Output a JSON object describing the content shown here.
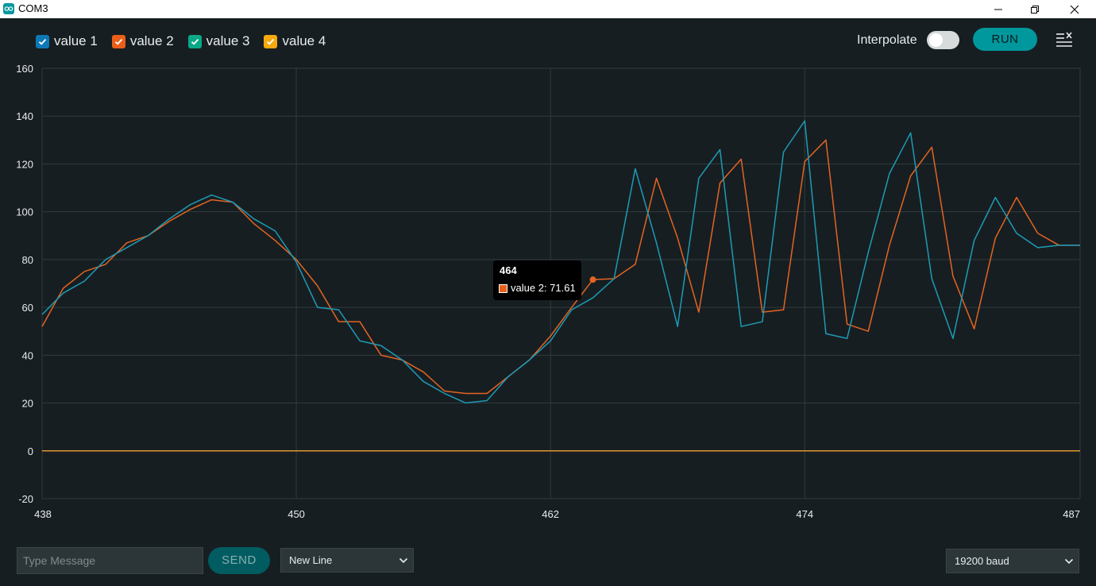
{
  "window": {
    "title": "COM3"
  },
  "legend": [
    {
      "label": "value 1",
      "color": "#0e78b6"
    },
    {
      "label": "value 2",
      "color": "#ec5f1a"
    },
    {
      "label": "value 3",
      "color": "#09a887"
    },
    {
      "label": "value 4",
      "color": "#f4aa0e"
    }
  ],
  "toolbar": {
    "interpolate_label": "Interpolate",
    "interpolate_on": false,
    "run_label": "RUN"
  },
  "chart_data": {
    "type": "line",
    "xlim": [
      438,
      487
    ],
    "ylim": [
      -20,
      160
    ],
    "x_ticks": [
      "438",
      "450",
      "462",
      "474",
      "487"
    ],
    "y_ticks": [
      "160",
      "140",
      "120",
      "100",
      "80",
      "60",
      "40",
      "20",
      "0",
      "-20"
    ],
    "grid": true,
    "x": [
      438,
      439,
      440,
      441,
      442,
      443,
      444,
      445,
      446,
      447,
      448,
      449,
      450,
      451,
      452,
      453,
      454,
      455,
      456,
      457,
      458,
      459,
      460,
      461,
      462,
      463,
      464,
      465,
      466,
      467,
      468,
      469,
      470,
      471,
      472,
      473,
      474,
      475,
      476,
      477,
      478,
      479,
      480,
      481,
      482,
      483,
      484,
      485,
      486,
      487
    ],
    "series": [
      {
        "name": "value 1",
        "color": "#1d9bb8",
        "values": [
          57,
          66,
          71,
          80,
          85,
          90,
          97,
          103,
          107,
          104,
          97,
          92,
          79,
          60,
          59,
          46,
          44,
          38,
          29,
          24,
          20,
          21,
          31,
          38,
          46,
          59,
          64,
          72,
          118,
          87,
          52,
          114,
          126,
          52,
          54,
          125,
          138,
          49,
          47,
          83,
          116,
          133,
          72,
          47,
          88,
          106,
          91,
          85,
          86,
          86
        ]
      },
      {
        "name": "value 2",
        "color": "#e26423",
        "values": [
          52,
          68,
          75,
          78,
          87,
          90,
          96,
          101,
          105,
          104,
          95,
          88,
          80,
          69,
          54,
          54,
          40,
          38,
          33,
          25,
          24,
          24,
          31,
          38,
          48,
          60,
          71.61,
          72,
          78,
          114,
          89,
          58,
          112,
          122,
          58,
          59,
          121,
          130,
          53,
          50,
          86,
          115,
          127,
          73,
          51,
          89,
          106,
          91,
          86,
          86
        ]
      },
      {
        "name": "value 3",
        "values": [
          57,
          66,
          71,
          80,
          85,
          90,
          97,
          103,
          107,
          104,
          97,
          92,
          79,
          60,
          59,
          46,
          44,
          38,
          29,
          24,
          20,
          21,
          31,
          38,
          46,
          59,
          64,
          72,
          118,
          87,
          52,
          114,
          126,
          52,
          54,
          125,
          138,
          49,
          47,
          83,
          116,
          133,
          72,
          47,
          88,
          106,
          91,
          85,
          86,
          86
        ]
      },
      {
        "name": "value 4",
        "color": "#e0952c",
        "values": [
          0,
          0,
          0,
          0,
          0,
          0,
          0,
          0,
          0,
          0,
          0,
          0,
          0,
          0,
          0,
          0,
          0,
          0,
          0,
          0,
          0,
          0,
          0,
          0,
          0,
          0,
          0,
          0,
          0,
          0,
          0,
          0,
          0,
          0,
          0,
          0,
          0,
          0,
          0,
          0,
          0,
          0,
          0,
          0,
          0,
          0,
          0,
          0,
          0,
          0
        ]
      }
    ],
    "tooltip": {
      "title": "464",
      "text": "value 2: 71.61",
      "series": "value 2",
      "x": 464,
      "y": 71.61
    }
  },
  "footer": {
    "message_placeholder": "Type Message",
    "send_label": "SEND",
    "line_ending": "New Line",
    "baud": "19200 baud"
  }
}
